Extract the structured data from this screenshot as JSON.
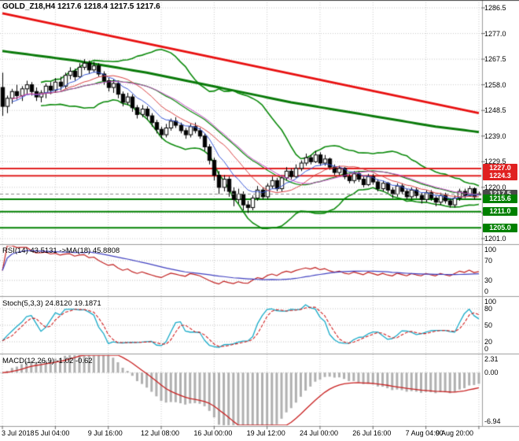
{
  "window": {
    "title": "GOLD_Z18,H4 1217.6 1218.4 1217.5 1217.6"
  },
  "chart_data": {
    "type": "candlestick",
    "symbol": "GOLD_Z18",
    "timeframe": "H4",
    "quote": {
      "open": "1217.6",
      "high": "1218.4",
      "low": "1217.5",
      "close": "1217.6"
    },
    "x_labels": [
      "3 Jul 2018",
      "5 Jul 04:00",
      "9 Jul 16:00",
      "12 Jul 08:00",
      "16 Jul 00:00",
      "19 Jul 12:00",
      "24 Jul 00:00",
      "26 Jul 16:00",
      "7 Aug 04:00",
      "9 Aug 20:00"
    ],
    "x_label_indices": [
      0,
      11,
      22,
      33,
      44,
      55,
      66,
      77,
      88,
      99
    ],
    "y_ticks": [
      1286.5,
      1277.0,
      1267.5,
      1258.0,
      1248.5,
      1239.0,
      1229.5,
      1220.0,
      1210.5,
      1201.0
    ],
    "candles": [
      [
        1257.0,
        1262.5,
        1246.5,
        1250.0
      ],
      [
        1250.0,
        1254.0,
        1247.5,
        1253.0
      ],
      [
        1253.0,
        1256.5,
        1251.0,
        1255.5
      ],
      [
        1255.5,
        1258.0,
        1252.5,
        1254.0
      ],
      [
        1254.0,
        1257.5,
        1252.0,
        1256.5
      ],
      [
        1256.5,
        1259.5,
        1254.5,
        1258.0
      ],
      [
        1258.0,
        1259.0,
        1254.0,
        1255.5
      ],
      [
        1255.5,
        1257.0,
        1252.0,
        1253.5
      ],
      [
        1253.5,
        1256.0,
        1251.5,
        1255.0
      ],
      [
        1255.0,
        1258.5,
        1253.0,
        1257.5
      ],
      [
        1257.5,
        1259.0,
        1254.5,
        1256.0
      ],
      [
        1256.0,
        1260.5,
        1255.0,
        1259.0
      ],
      [
        1259.0,
        1261.0,
        1256.0,
        1257.5
      ],
      [
        1257.5,
        1262.5,
        1256.5,
        1261.5
      ],
      [
        1261.5,
        1264.5,
        1260.0,
        1263.0
      ],
      [
        1263.0,
        1264.0,
        1259.5,
        1261.0
      ],
      [
        1261.0,
        1266.0,
        1260.5,
        1264.5
      ],
      [
        1264.5,
        1267.5,
        1263.5,
        1266.0
      ],
      [
        1266.0,
        1267.0,
        1262.0,
        1263.5
      ],
      [
        1263.5,
        1266.5,
        1262.5,
        1265.0
      ],
      [
        1265.0,
        1266.0,
        1261.0,
        1262.0
      ],
      [
        1262.0,
        1263.0,
        1258.0,
        1259.5
      ],
      [
        1259.5,
        1260.5,
        1255.5,
        1257.0
      ],
      [
        1257.0,
        1260.0,
        1255.0,
        1258.5
      ],
      [
        1258.5,
        1259.5,
        1253.0,
        1254.5
      ],
      [
        1254.5,
        1255.5,
        1250.0,
        1251.5
      ],
      [
        1251.5,
        1255.0,
        1250.5,
        1253.5
      ],
      [
        1253.5,
        1254.5,
        1248.0,
        1249.5
      ],
      [
        1249.5,
        1250.5,
        1245.5,
        1247.0
      ],
      [
        1247.0,
        1250.5,
        1246.0,
        1249.0
      ],
      [
        1249.0,
        1250.0,
        1245.0,
        1246.5
      ],
      [
        1246.5,
        1247.5,
        1242.5,
        1244.0
      ],
      [
        1244.0,
        1245.0,
        1240.0,
        1241.5
      ],
      [
        1241.5,
        1242.5,
        1238.0,
        1239.5
      ],
      [
        1239.5,
        1243.5,
        1238.5,
        1242.0
      ],
      [
        1242.0,
        1245.5,
        1241.0,
        1244.5
      ],
      [
        1244.5,
        1246.0,
        1242.0,
        1243.0
      ],
      [
        1243.0,
        1244.0,
        1240.0,
        1241.0
      ],
      [
        1241.0,
        1242.0,
        1238.0,
        1239.5
      ],
      [
        1239.5,
        1243.5,
        1238.5,
        1242.5
      ],
      [
        1242.5,
        1244.0,
        1240.0,
        1241.0
      ],
      [
        1241.0,
        1242.0,
        1238.0,
        1239.0
      ],
      [
        1239.0,
        1240.0,
        1233.5,
        1235.0
      ],
      [
        1235.0,
        1236.0,
        1228.5,
        1230.0
      ],
      [
        1230.0,
        1231.0,
        1222.5,
        1224.5
      ],
      [
        1224.5,
        1226.0,
        1217.5,
        1220.0
      ],
      [
        1220.0,
        1224.5,
        1218.5,
        1223.0
      ],
      [
        1223.0,
        1224.0,
        1216.5,
        1218.5
      ],
      [
        1218.5,
        1220.0,
        1213.0,
        1215.5
      ],
      [
        1215.5,
        1219.5,
        1214.0,
        1217.5
      ],
      [
        1217.5,
        1218.5,
        1211.5,
        1213.5
      ],
      [
        1213.5,
        1215.0,
        1210.5,
        1212.5
      ],
      [
        1212.5,
        1217.0,
        1211.5,
        1216.0
      ],
      [
        1216.0,
        1220.5,
        1215.0,
        1219.0
      ],
      [
        1219.0,
        1220.0,
        1215.5,
        1216.5
      ],
      [
        1216.5,
        1221.5,
        1215.5,
        1220.5
      ],
      [
        1220.5,
        1224.0,
        1219.5,
        1222.5
      ],
      [
        1222.5,
        1223.5,
        1218.5,
        1219.5
      ],
      [
        1219.5,
        1224.5,
        1218.5,
        1223.5
      ],
      [
        1223.5,
        1227.5,
        1222.5,
        1226.0
      ],
      [
        1226.0,
        1227.0,
        1223.0,
        1224.0
      ],
      [
        1224.0,
        1228.5,
        1223.5,
        1227.0
      ],
      [
        1227.0,
        1230.0,
        1226.0,
        1229.0
      ],
      [
        1229.0,
        1232.5,
        1228.0,
        1231.0
      ],
      [
        1231.0,
        1232.0,
        1228.5,
        1229.5
      ],
      [
        1229.5,
        1233.5,
        1229.0,
        1232.0
      ],
      [
        1232.0,
        1233.0,
        1228.0,
        1229.0
      ],
      [
        1229.0,
        1232.0,
        1228.0,
        1230.5
      ],
      [
        1230.5,
        1231.0,
        1226.5,
        1227.5
      ],
      [
        1227.5,
        1228.5,
        1224.5,
        1225.5
      ],
      [
        1225.5,
        1228.0,
        1224.5,
        1227.0
      ],
      [
        1227.0,
        1227.5,
        1223.0,
        1224.0
      ],
      [
        1224.0,
        1225.0,
        1221.5,
        1222.5
      ],
      [
        1222.5,
        1226.0,
        1221.5,
        1225.0
      ],
      [
        1225.0,
        1226.0,
        1222.0,
        1223.0
      ],
      [
        1223.0,
        1224.0,
        1220.0,
        1221.0
      ],
      [
        1221.0,
        1225.0,
        1220.5,
        1224.0
      ],
      [
        1224.0,
        1225.0,
        1221.0,
        1222.0
      ],
      [
        1222.0,
        1223.0,
        1218.5,
        1219.5
      ],
      [
        1219.5,
        1222.5,
        1218.5,
        1221.5
      ],
      [
        1221.5,
        1222.0,
        1218.0,
        1219.0
      ],
      [
        1219.0,
        1220.0,
        1216.0,
        1217.5
      ],
      [
        1217.5,
        1221.5,
        1216.5,
        1220.5
      ],
      [
        1220.5,
        1221.5,
        1217.5,
        1218.5
      ],
      [
        1218.5,
        1219.5,
        1215.5,
        1216.5
      ],
      [
        1216.5,
        1220.0,
        1215.5,
        1219.0
      ],
      [
        1219.0,
        1220.0,
        1216.0,
        1217.0
      ],
      [
        1217.0,
        1218.0,
        1214.0,
        1215.5
      ],
      [
        1215.5,
        1219.0,
        1214.5,
        1218.0
      ],
      [
        1218.0,
        1219.0,
        1215.0,
        1216.0
      ],
      [
        1216.0,
        1217.0,
        1213.0,
        1214.5
      ],
      [
        1214.5,
        1218.0,
        1213.5,
        1217.0
      ],
      [
        1217.0,
        1218.0,
        1214.0,
        1215.0
      ],
      [
        1215.0,
        1216.0,
        1212.5,
        1213.5
      ],
      [
        1213.5,
        1217.0,
        1212.5,
        1216.0
      ],
      [
        1216.0,
        1219.5,
        1215.0,
        1218.5
      ],
      [
        1218.5,
        1219.5,
        1216.0,
        1217.0
      ],
      [
        1217.0,
        1220.5,
        1216.5,
        1219.5
      ],
      [
        1219.5,
        1220.0,
        1215.5,
        1216.5
      ],
      [
        1217.6,
        1218.4,
        1217.5,
        1217.6
      ]
    ],
    "overlays": {
      "bollinger": {
        "period": 20,
        "deviation": 2,
        "color": "#0c8a0c"
      },
      "ma_thick": {
        "color": "#0a7a0a",
        "width": 3,
        "points": [
          [
            0,
            1270.5
          ],
          [
            15,
            1267.0
          ],
          [
            30,
            1262.5
          ],
          [
            45,
            1257.0
          ],
          [
            60,
            1251.5
          ],
          [
            75,
            1247.0
          ],
          [
            90,
            1242.5
          ],
          [
            99,
            1240.5
          ]
        ]
      },
      "trendline": {
        "color": "#e81010",
        "width": 3,
        "points": [
          [
            0,
            1284.5
          ],
          [
            99,
            1247.5
          ]
        ]
      },
      "moving_averages": [
        {
          "type": "ema",
          "period": 8,
          "color": "#3858d8"
        },
        {
          "type": "sma",
          "period": 13,
          "color": "#d84040"
        },
        {
          "type": "sma",
          "period": 21,
          "color": "#c048c0"
        }
      ]
    },
    "horizontal_lines": [
      {
        "price": 1227.0,
        "color": "#e02020",
        "width": 2
      },
      {
        "price": 1224.3,
        "color": "#e02020",
        "width": 2
      },
      {
        "price": 1215.6,
        "color": "#008000",
        "width": 2
      },
      {
        "price": 1211.0,
        "color": "#008000",
        "width": 2
      },
      {
        "price": 1205.0,
        "color": "#008000",
        "width": 2
      }
    ],
    "current_price": 1217.5,
    "price_tags": [
      {
        "label": "1227.0",
        "price": 1227.0,
        "bg": "#e02020"
      },
      {
        "label": "1224.3",
        "price": 1224.3,
        "bg": "#e02020"
      },
      {
        "label": "1217.5",
        "price": 1217.5,
        "bg": "#4a4a4a"
      },
      {
        "label": "1215.6",
        "price": 1215.6,
        "bg": "#008000"
      },
      {
        "label": "1211.0",
        "price": 1211.0,
        "bg": "#008000"
      },
      {
        "label": "1205.0",
        "price": 1205.0,
        "bg": "#008000"
      }
    ],
    "panels": {
      "rsi": {
        "label": "RSI(14) 43.5131 ->MA(18) 45.8808",
        "period": 14,
        "ma_period": 18,
        "value": "43.5131",
        "ma_value": "45.8808",
        "levels": [
          70,
          30
        ],
        "y_labels": [
          "100",
          "70",
          "30",
          "0"
        ],
        "range": [
          0,
          100
        ],
        "line_color": "#c02020",
        "ma_color": "#4040c0"
      },
      "stoch": {
        "label": "Stoch(5,3,3) 24.8120 19.1871",
        "k_period": 5,
        "d_period": 3,
        "slowing": 3,
        "value_k": "24.8120",
        "value_d": "19.1871",
        "levels": [
          80,
          50,
          20
        ],
        "y_labels": [
          "100",
          "80",
          "50",
          "20",
          "0"
        ],
        "range": [
          0,
          100
        ],
        "k_color": "#18aac8",
        "d_color": "#d02020"
      },
      "macd": {
        "label": "MACD(12,26,9) -1.02 -0.62",
        "fast": 12,
        "slow": 26,
        "signal": 9,
        "value_macd": "-1.02",
        "value_signal": "-0.62",
        "y_labels": [
          "2.31",
          "0.00",
          "-6.94"
        ],
        "range": [
          -6.94,
          2.31
        ],
        "hist_color": "#b0b0b0",
        "signal_color": "#c82020"
      }
    },
    "grid_color": "#c9c9c9"
  }
}
